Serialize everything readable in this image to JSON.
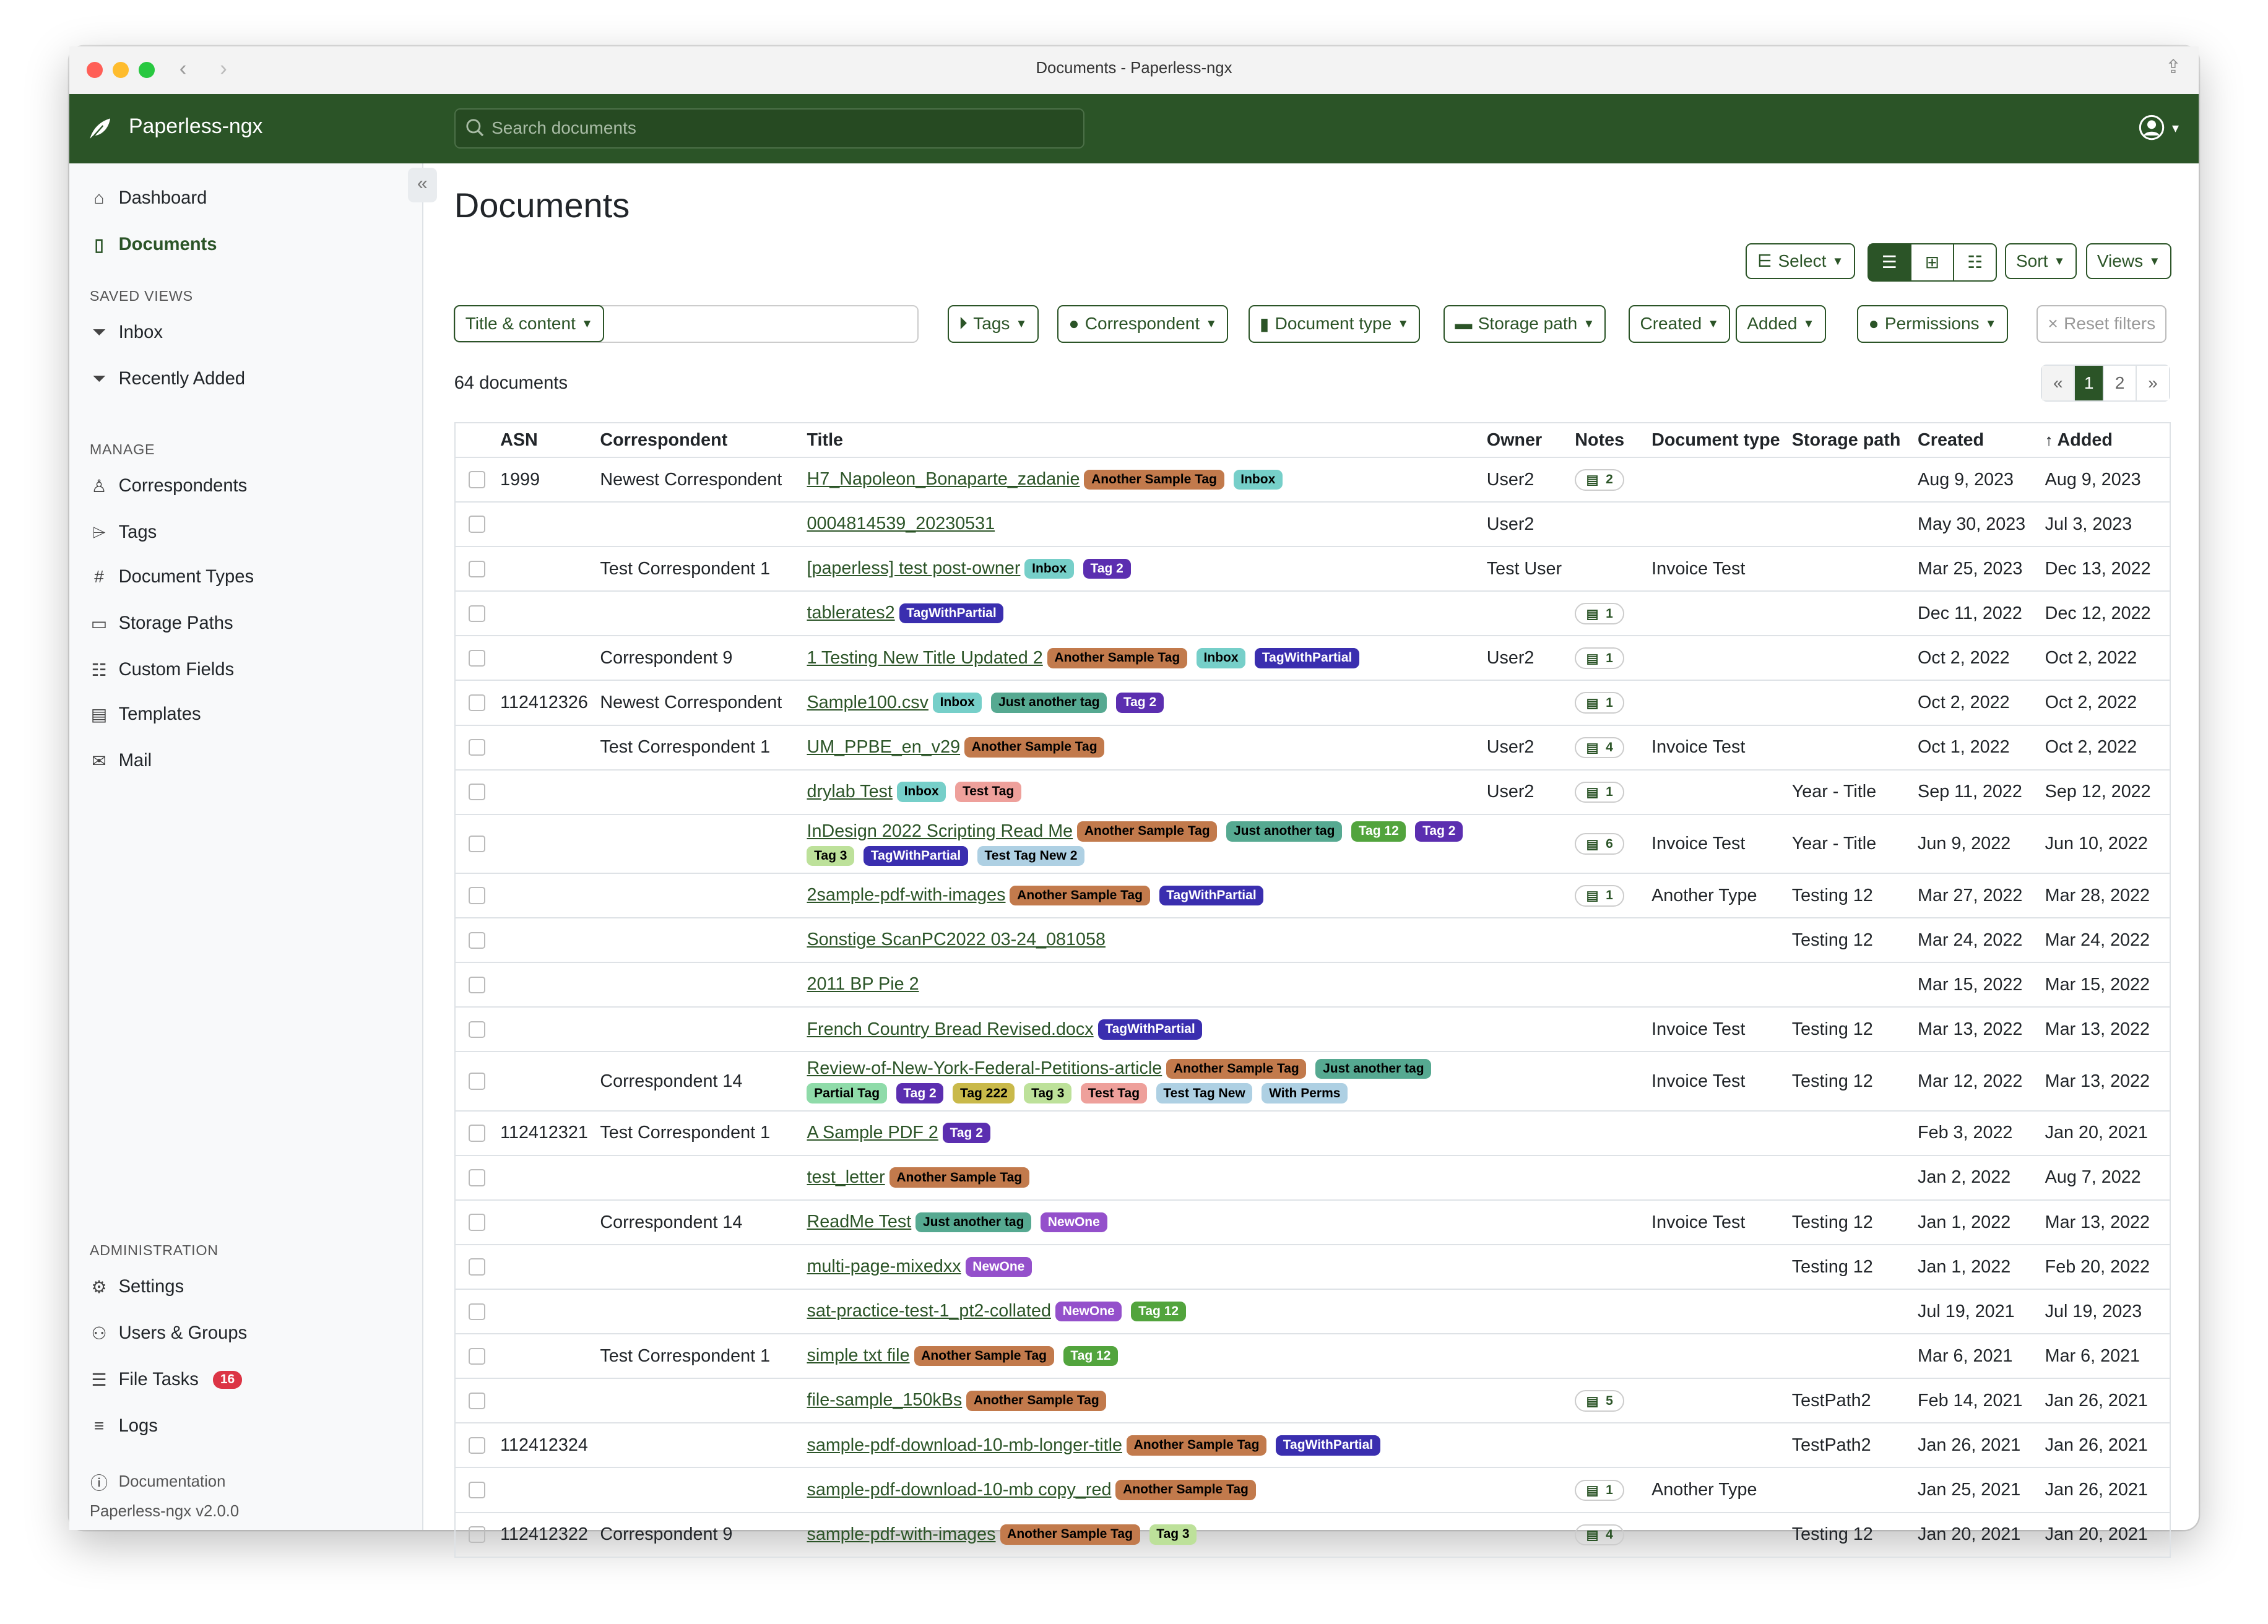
{
  "window": {
    "title": "Documents - Paperless-ngx"
  },
  "navbar": {
    "brand": "Paperless-ngx",
    "search_placeholder": "Search documents"
  },
  "sidebar": {
    "main": [
      {
        "label": "Dashboard",
        "icon": "house-icon"
      },
      {
        "label": "Documents",
        "icon": "documents-icon",
        "active": true
      }
    ],
    "saved_views_heading": "SAVED VIEWS",
    "saved_views": [
      {
        "label": "Inbox",
        "icon": "funnel-icon"
      },
      {
        "label": "Recently Added",
        "icon": "funnel-icon"
      }
    ],
    "manage_heading": "MANAGE",
    "manage": [
      {
        "label": "Correspondents",
        "icon": "person-icon"
      },
      {
        "label": "Tags",
        "icon": "tags-icon"
      },
      {
        "label": "Document Types",
        "icon": "hash-icon"
      },
      {
        "label": "Storage Paths",
        "icon": "folder-icon"
      },
      {
        "label": "Custom Fields",
        "icon": "ui-radios-icon"
      },
      {
        "label": "Templates",
        "icon": "file-text-icon"
      },
      {
        "label": "Mail",
        "icon": "envelope-icon"
      }
    ],
    "admin_heading": "ADMINISTRATION",
    "admin": [
      {
        "label": "Settings",
        "icon": "gear-icon"
      },
      {
        "label": "Users & Groups",
        "icon": "people-icon"
      },
      {
        "label": "File Tasks",
        "icon": "list-task-icon",
        "badge": "16"
      },
      {
        "label": "Logs",
        "icon": "text-left-icon"
      }
    ],
    "documentation": "Documentation",
    "version": "Paperless-ngx v2.0.0"
  },
  "main": {
    "title": "Documents",
    "toolbar": {
      "select": "Select",
      "sort": "Sort",
      "views": "Views"
    },
    "filters": {
      "text_mode": "Title & content",
      "text_value": "",
      "tags": "Tags",
      "correspondent": "Correspondent",
      "document_type": "Document type",
      "storage_path": "Storage path",
      "created": "Created",
      "added": "Added",
      "permissions": "Permissions",
      "reset": "Reset filters"
    },
    "count": "64 documents",
    "pagination": {
      "prev": "«",
      "pages": [
        "1",
        "2"
      ],
      "current": "1",
      "next": "»"
    },
    "columns": [
      "ASN",
      "Correspondent",
      "Title",
      "Owner",
      "Notes",
      "Document type",
      "Storage path",
      "Created",
      "Added"
    ],
    "sort_column": "Added"
  },
  "tag_colors": {
    "Another Sample Tag": {
      "bg": "#c27a4c",
      "fg": "#000000"
    },
    "Inbox": {
      "bg": "#76cfc9",
      "fg": "#000000"
    },
    "Tag 2": {
      "bg": "#5b2eb0",
      "fg": "#ffffff"
    },
    "TagWithPartial": {
      "bg": "#3a2eaf",
      "fg": "#ffffff"
    },
    "Just another tag": {
      "bg": "#56a991",
      "fg": "#000000"
    },
    "Tag 12": {
      "bg": "#52a43d",
      "fg": "#ffffff"
    },
    "Tag 3": {
      "bg": "#bde19a",
      "fg": "#000000"
    },
    "Test Tag New 2": {
      "bg": "#aed0e3",
      "fg": "#000000"
    },
    "Test Tag New": {
      "bg": "#aed0e3",
      "fg": "#000000"
    },
    "With Perms": {
      "bg": "#aed0e3",
      "fg": "#000000"
    },
    "Test Tag": {
      "bg": "#eea09b",
      "fg": "#000000"
    },
    "Partial Tag": {
      "bg": "#8fdba9",
      "fg": "#000000"
    },
    "Tag 222": {
      "bg": "#c9b94a",
      "fg": "#000000"
    },
    "NewOne": {
      "bg": "#9450cb",
      "fg": "#ffffff"
    }
  },
  "rows": [
    {
      "asn": "1999",
      "correspondent": "Newest Correspondent",
      "title": "H7_Napoleon_Bonaparte_zadanie",
      "tags": [
        "Another Sample Tag",
        "Inbox"
      ],
      "owner": "User2",
      "notes": "2",
      "doctype": "",
      "storage": "",
      "created": "Aug 9, 2023",
      "added": "Aug 9, 2023"
    },
    {
      "asn": "",
      "correspondent": "",
      "title": "0004814539_20230531",
      "tags": [],
      "owner": "User2",
      "notes": "",
      "doctype": "",
      "storage": "",
      "created": "May 30, 2023",
      "added": "Jul 3, 2023"
    },
    {
      "asn": "",
      "correspondent": "Test Correspondent 1",
      "title": "[paperless] test post-owner",
      "tags": [
        "Inbox",
        "Tag 2"
      ],
      "owner": "Test User",
      "notes": "",
      "doctype": "Invoice Test",
      "storage": "",
      "created": "Mar 25, 2023",
      "added": "Dec 13, 2022"
    },
    {
      "asn": "",
      "correspondent": "",
      "title": "tablerates2",
      "tags": [
        "TagWithPartial"
      ],
      "owner": "",
      "notes": "1",
      "doctype": "",
      "storage": "",
      "created": "Dec 11, 2022",
      "added": "Dec 12, 2022"
    },
    {
      "asn": "",
      "correspondent": "Correspondent 9",
      "title": "1 Testing New Title Updated 2",
      "tags": [
        "Another Sample Tag",
        "Inbox",
        "TagWithPartial"
      ],
      "owner": "User2",
      "notes": "1",
      "doctype": "",
      "storage": "",
      "created": "Oct 2, 2022",
      "added": "Oct 2, 2022"
    },
    {
      "asn": "112412326",
      "correspondent": "Newest Correspondent",
      "title": "Sample100.csv",
      "tags": [
        "Inbox",
        "Just another tag",
        "Tag 2"
      ],
      "owner": "",
      "notes": "1",
      "doctype": "",
      "storage": "",
      "created": "Oct 2, 2022",
      "added": "Oct 2, 2022"
    },
    {
      "asn": "",
      "correspondent": "Test Correspondent 1",
      "title": "UM_PPBE_en_v29",
      "tags": [
        "Another Sample Tag"
      ],
      "owner": "User2",
      "notes": "4",
      "doctype": "Invoice Test",
      "storage": "",
      "created": "Oct 1, 2022",
      "added": "Oct 2, 2022"
    },
    {
      "asn": "",
      "correspondent": "",
      "title": "drylab Test",
      "tags": [
        "Inbox",
        "Test Tag"
      ],
      "owner": "User2",
      "notes": "1",
      "doctype": "",
      "storage": "Year - Title",
      "created": "Sep 11, 2022",
      "added": "Sep 12, 2022"
    },
    {
      "asn": "",
      "correspondent": "",
      "title": "InDesign 2022 Scripting Read Me",
      "tags": [
        "Another Sample Tag",
        "Just another tag",
        "Tag 12",
        "Tag 2",
        "Tag 3",
        "TagWithPartial",
        "Test Tag New 2"
      ],
      "owner": "",
      "notes": "6",
      "doctype": "Invoice Test",
      "storage": "Year - Title",
      "created": "Jun 9, 2022",
      "added": "Jun 10, 2022"
    },
    {
      "asn": "",
      "correspondent": "",
      "title": "2sample-pdf-with-images",
      "tags": [
        "Another Sample Tag",
        "TagWithPartial"
      ],
      "owner": "",
      "notes": "1",
      "doctype": "Another Type",
      "storage": "Testing 12",
      "created": "Mar 27, 2022",
      "added": "Mar 28, 2022"
    },
    {
      "asn": "",
      "correspondent": "",
      "title": "Sonstige ScanPC2022 03-24_081058",
      "tags": [],
      "owner": "",
      "notes": "",
      "doctype": "",
      "storage": "Testing 12",
      "created": "Mar 24, 2022",
      "added": "Mar 24, 2022"
    },
    {
      "asn": "",
      "correspondent": "",
      "title": "2011 BP Pie 2",
      "tags": [],
      "owner": "",
      "notes": "",
      "doctype": "",
      "storage": "",
      "created": "Mar 15, 2022",
      "added": "Mar 15, 2022"
    },
    {
      "asn": "",
      "correspondent": "",
      "title": "French Country Bread Revised.docx",
      "tags": [
        "TagWithPartial"
      ],
      "owner": "",
      "notes": "",
      "doctype": "Invoice Test",
      "storage": "Testing 12",
      "created": "Mar 13, 2022",
      "added": "Mar 13, 2022"
    },
    {
      "asn": "",
      "correspondent": "Correspondent 14",
      "title": "Review-of-New-York-Federal-Petitions-article",
      "tags": [
        "Another Sample Tag",
        "Just another tag",
        "Partial Tag",
        "Tag 2",
        "Tag 222",
        "Tag 3",
        "Test Tag",
        "Test Tag New",
        "With Perms"
      ],
      "owner": "",
      "notes": "",
      "doctype": "Invoice Test",
      "storage": "Testing 12",
      "created": "Mar 12, 2022",
      "added": "Mar 13, 2022"
    },
    {
      "asn": "112412321",
      "correspondent": "Test Correspondent 1",
      "title": "A Sample PDF 2",
      "tags": [
        "Tag 2"
      ],
      "owner": "",
      "notes": "",
      "doctype": "",
      "storage": "",
      "created": "Feb 3, 2022",
      "added": "Jan 20, 2021"
    },
    {
      "asn": "",
      "correspondent": "",
      "title": "test_letter",
      "tags": [
        "Another Sample Tag"
      ],
      "owner": "",
      "notes": "",
      "doctype": "",
      "storage": "",
      "created": "Jan 2, 2022",
      "added": "Aug 7, 2022"
    },
    {
      "asn": "",
      "correspondent": "Correspondent 14",
      "title": "ReadMe Test",
      "tags": [
        "Just another tag",
        "NewOne"
      ],
      "owner": "",
      "notes": "",
      "doctype": "Invoice Test",
      "storage": "Testing 12",
      "created": "Jan 1, 2022",
      "added": "Mar 13, 2022"
    },
    {
      "asn": "",
      "correspondent": "",
      "title": "multi-page-mixedxx",
      "tags": [
        "NewOne"
      ],
      "owner": "",
      "notes": "",
      "doctype": "",
      "storage": "Testing 12",
      "created": "Jan 1, 2022",
      "added": "Feb 20, 2022"
    },
    {
      "asn": "",
      "correspondent": "",
      "title": "sat-practice-test-1_pt2-collated",
      "tags": [
        "NewOne",
        "Tag 12"
      ],
      "owner": "",
      "notes": "",
      "doctype": "",
      "storage": "",
      "created": "Jul 19, 2021",
      "added": "Jul 19, 2023"
    },
    {
      "asn": "",
      "correspondent": "Test Correspondent 1",
      "title": "simple txt file",
      "tags": [
        "Another Sample Tag",
        "Tag 12"
      ],
      "owner": "",
      "notes": "",
      "doctype": "",
      "storage": "",
      "created": "Mar 6, 2021",
      "added": "Mar 6, 2021"
    },
    {
      "asn": "",
      "correspondent": "",
      "title": "file-sample_150kBs",
      "tags": [
        "Another Sample Tag"
      ],
      "owner": "",
      "notes": "5",
      "doctype": "",
      "storage": "TestPath2",
      "created": "Feb 14, 2021",
      "added": "Jan 26, 2021"
    },
    {
      "asn": "112412324",
      "correspondent": "",
      "title": "sample-pdf-download-10-mb-longer-title",
      "tags": [
        "Another Sample Tag",
        "TagWithPartial"
      ],
      "owner": "",
      "notes": "",
      "doctype": "",
      "storage": "TestPath2",
      "created": "Jan 26, 2021",
      "added": "Jan 26, 2021"
    },
    {
      "asn": "",
      "correspondent": "",
      "title": "sample-pdf-download-10-mb copy_red",
      "tags": [
        "Another Sample Tag"
      ],
      "owner": "",
      "notes": "1",
      "doctype": "Another Type",
      "storage": "",
      "created": "Jan 25, 2021",
      "added": "Jan 26, 2021"
    },
    {
      "asn": "112412322",
      "correspondent": "Correspondent 9",
      "title": "sample-pdf-with-images",
      "tags": [
        "Another Sample Tag",
        "Tag 3"
      ],
      "owner": "",
      "notes": "4",
      "doctype": "",
      "storage": "Testing 12",
      "created": "Jan 20, 2021",
      "added": "Jan 20, 2021"
    }
  ]
}
